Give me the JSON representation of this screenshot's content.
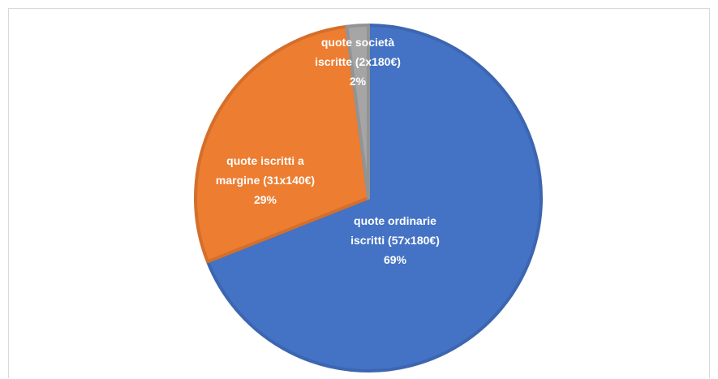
{
  "chart_data": {
    "type": "pie",
    "title": "",
    "slices": [
      {
        "label_lines": [
          "quote ordinarie",
          "iscritti (57x180€)",
          "69%"
        ],
        "value": 69,
        "color": "#4472C4",
        "border": "#3d66b0"
      },
      {
        "label_lines": [
          "quote iscritti a",
          "margine (31x140€)",
          "29%"
        ],
        "value": 29,
        "color": "#ED7D31",
        "border": "#d46f2b"
      },
      {
        "label_lines": [
          "quote società",
          "iscritte (2x180€)",
          "2%"
        ],
        "value": 2,
        "color": "#A5A5A5",
        "border": "#939393"
      }
    ]
  }
}
